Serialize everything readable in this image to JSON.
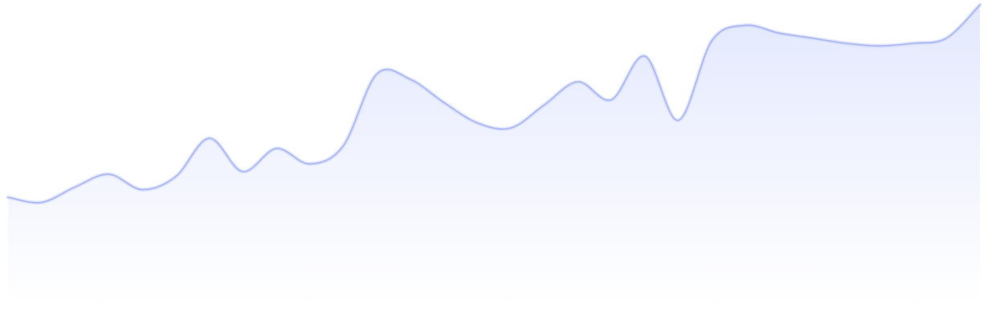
{
  "chart_data": {
    "type": "area",
    "title": "",
    "xlabel": "",
    "ylabel": "",
    "grid": false,
    "legend": "none",
    "x": [
      0,
      2,
      4,
      6,
      8,
      10,
      12,
      14,
      16,
      18,
      20,
      22,
      24,
      26,
      28,
      30,
      32,
      34,
      36,
      38,
      40,
      42,
      44,
      46,
      48,
      50,
      52,
      54,
      56,
      58
    ],
    "xlim": [
      0,
      58
    ],
    "ylim": [
      0,
      100
    ],
    "series": [
      {
        "values": [
          25,
          23,
          29,
          34,
          28,
          33,
          48,
          35,
          44,
          38,
          45,
          73,
          71,
          62,
          54,
          52,
          61,
          70,
          63,
          80,
          55,
          86,
          92,
          89,
          87,
          85,
          84,
          85,
          87,
          100
        ],
        "color": "#a9b6f3"
      }
    ],
    "colors": {
      "line": "#a9b6f3",
      "line_glow": "#c9d2f8",
      "fill_top": "#e3e8fd",
      "fill_bottom": "#ffffff"
    }
  }
}
